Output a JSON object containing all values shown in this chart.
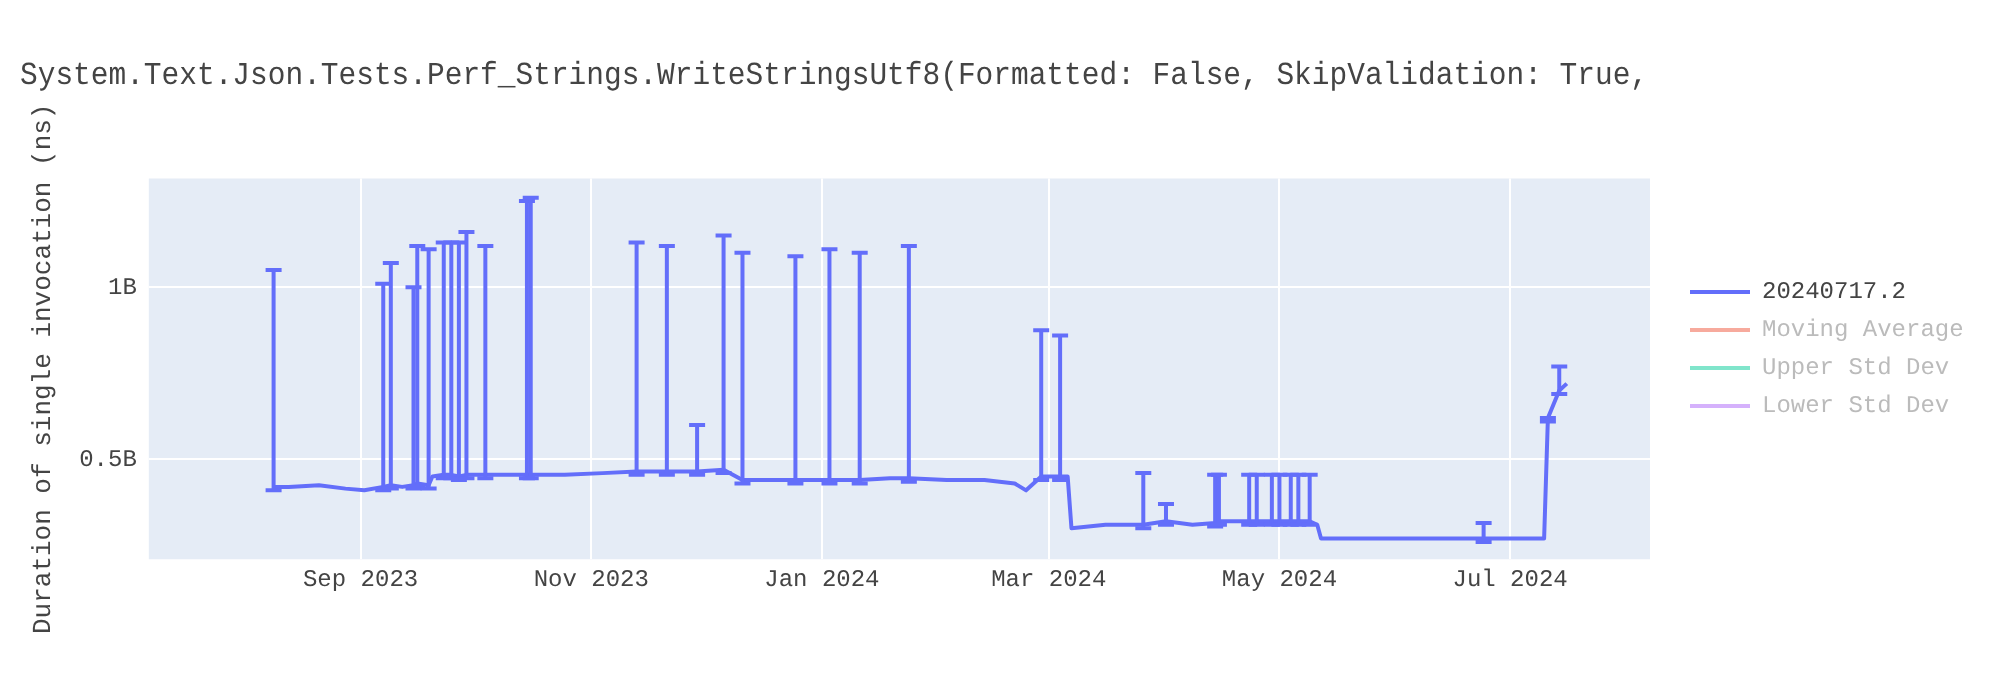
{
  "chart_data": {
    "type": "line",
    "title": "System.Text.Json.Tests.Perf_Strings.WriteStringsUtf8(Formatted: False, SkipValidation: True,",
    "ylabel": "Duration of single invocation (ns)",
    "x": [
      "2023-08-09",
      "2023-08-13",
      "2023-08-21",
      "2023-08-28",
      "2023-09-02",
      "2023-09-07",
      "2023-09-09",
      "2023-09-12",
      "2023-09-15",
      "2023-09-16",
      "2023-09-19",
      "2023-09-20",
      "2023-09-23",
      "2023-09-25",
      "2023-09-27",
      "2023-09-29",
      "2023-10-04",
      "2023-10-10",
      "2023-10-15",
      "2023-10-16",
      "2023-10-25",
      "2023-11-04",
      "2023-11-13",
      "2023-11-21",
      "2023-11-29",
      "2023-12-06",
      "2023-12-11",
      "2023-12-17",
      "2023-12-25",
      "2024-01-03",
      "2024-01-11",
      "2024-01-19",
      "2024-01-24",
      "2024-02-03",
      "2024-02-13",
      "2024-02-21",
      "2024-02-24",
      "2024-02-28",
      "2024-03-04",
      "2024-03-06",
      "2024-03-07",
      "2024-03-16",
      "2024-03-26",
      "2024-04-01",
      "2024-04-08",
      "2024-04-14",
      "2024-04-15",
      "2024-04-23",
      "2024-04-25",
      "2024-04-29",
      "2024-05-01",
      "2024-05-04",
      "2024-05-06",
      "2024-05-09",
      "2024-05-11",
      "2024-05-12",
      "2024-05-31",
      "2024-06-24",
      "2024-07-06",
      "2024-07-10",
      "2024-07-11",
      "2024-07-14",
      "2024-07-16"
    ],
    "series": [
      {
        "name": "20240717.2",
        "color": "#636efa",
        "values": [
          420000000,
          420000000,
          425000000,
          415000000,
          410000000,
          420000000,
          425000000,
          420000000,
          425000000,
          430000000,
          425000000,
          450000000,
          455000000,
          455000000,
          450000000,
          455000000,
          455000000,
          455000000,
          455000000,
          455000000,
          455000000,
          460000000,
          465000000,
          465000000,
          465000000,
          470000000,
          440000000,
          440000000,
          440000000,
          440000000,
          440000000,
          445000000,
          445000000,
          440000000,
          440000000,
          430000000,
          410000000,
          450000000,
          450000000,
          450000000,
          300000000,
          310000000,
          310000000,
          320000000,
          310000000,
          315000000,
          320000000,
          320000000,
          320000000,
          320000000,
          320000000,
          320000000,
          320000000,
          320000000,
          310000000,
          270000000,
          270000000,
          270000000,
          270000000,
          270000000,
          620000000,
          700000000,
          720000000
        ],
        "errors": [
          [
            410000000,
            1050000000
          ],
          null,
          null,
          null,
          null,
          [
            410000000,
            1010000000
          ],
          [
            415000000,
            1070000000
          ],
          null,
          [
            415000000,
            1000000000
          ],
          [
            420000000,
            1120000000
          ],
          [
            415000000,
            1110000000
          ],
          null,
          [
            445000000,
            1130000000
          ],
          [
            445000000,
            1130000000
          ],
          [
            440000000,
            1130000000
          ],
          [
            445000000,
            1160000000
          ],
          [
            445000000,
            1120000000
          ],
          null,
          [
            445000000,
            1250000000
          ],
          [
            445000000,
            1260000000
          ],
          null,
          null,
          [
            455000000,
            1130000000
          ],
          [
            455000000,
            1120000000
          ],
          [
            455000000,
            600000000
          ],
          [
            460000000,
            1150000000
          ],
          [
            430000000,
            1100000000
          ],
          null,
          [
            430000000,
            1090000000
          ],
          [
            430000000,
            1110000000
          ],
          [
            430000000,
            1100000000
          ],
          null,
          [
            435000000,
            1120000000
          ],
          null,
          null,
          null,
          null,
          [
            440000000,
            875000000
          ],
          [
            440000000,
            860000000
          ],
          null,
          null,
          null,
          [
            300000000,
            460000000
          ],
          [
            310000000,
            370000000
          ],
          null,
          [
            305000000,
            455000000
          ],
          [
            310000000,
            455000000
          ],
          [
            310000000,
            455000000
          ],
          [
            310000000,
            455000000
          ],
          [
            310000000,
            455000000
          ],
          [
            310000000,
            455000000
          ],
          [
            310000000,
            455000000
          ],
          [
            310000000,
            455000000
          ],
          [
            310000000,
            455000000
          ],
          null,
          null,
          null,
          [
            260000000,
            315000000
          ],
          null,
          null,
          [
            610000000,
            620000000
          ],
          [
            690000000,
            770000000
          ],
          null
        ]
      },
      {
        "name": "Moving Average",
        "color": "#f7aa9d",
        "values": [
          null,
          null,
          null,
          null,
          null,
          null,
          null,
          null,
          null,
          null,
          null,
          null,
          null,
          null,
          null,
          null,
          null,
          null,
          null,
          null,
          null,
          null,
          null,
          null,
          null,
          null,
          null,
          null,
          null,
          null,
          null,
          null,
          null,
          null,
          null,
          null,
          null,
          null,
          null,
          null,
          null,
          null,
          null,
          null,
          null,
          null,
          null,
          null,
          null,
          null,
          null,
          null,
          null,
          null,
          null,
          null,
          null,
          null,
          null,
          null,
          null,
          null,
          null
        ]
      },
      {
        "name": "Upper Std Dev",
        "color": "#80e5cb",
        "values": [
          null,
          null,
          null,
          null,
          null,
          null,
          null,
          null,
          null,
          null,
          null,
          null,
          null,
          null,
          null,
          null,
          null,
          null,
          null,
          null,
          null,
          null,
          null,
          null,
          null,
          null,
          null,
          null,
          null,
          null,
          null,
          null,
          null,
          null,
          null,
          null,
          null,
          null,
          null,
          null,
          null,
          null,
          null,
          null,
          null,
          null,
          null,
          null,
          null,
          null,
          null,
          null,
          null,
          null,
          null,
          null,
          null,
          null,
          null,
          null,
          null,
          null,
          null
        ]
      },
      {
        "name": "Lower Std Dev",
        "color": "#d5b1fc",
        "values": [
          null,
          null,
          null,
          null,
          null,
          null,
          null,
          null,
          null,
          null,
          null,
          null,
          null,
          null,
          null,
          null,
          null,
          null,
          null,
          null,
          null,
          null,
          null,
          null,
          null,
          null,
          null,
          null,
          null,
          null,
          null,
          null,
          null,
          null,
          null,
          null,
          null,
          null,
          null,
          null,
          null,
          null,
          null,
          null,
          null,
          null,
          null,
          null,
          null,
          null,
          null,
          null,
          null,
          null,
          null,
          null,
          null,
          null,
          null,
          null,
          null,
          null,
          null
        ]
      }
    ],
    "xlim": [
      "2023-07-07",
      "2024-08-07"
    ],
    "xticks": [
      {
        "value": "2023-09-01",
        "label": "Sep 2023"
      },
      {
        "value": "2023-11-01",
        "label": "Nov 2023"
      },
      {
        "value": "2024-01-01",
        "label": "Jan 2024"
      },
      {
        "value": "2024-03-01",
        "label": "Mar 2024"
      },
      {
        "value": "2024-05-01",
        "label": "May 2024"
      },
      {
        "value": "2024-07-01",
        "label": "Jul 2024"
      }
    ],
    "ylim": [
      210000000,
      1316000000
    ],
    "yticks": [
      {
        "value": 500000000,
        "label": "0.5B"
      },
      {
        "value": 1000000000,
        "label": "1B"
      }
    ],
    "grid": true,
    "legend": "top right",
    "marker": "none",
    "line_style": "solid"
  }
}
